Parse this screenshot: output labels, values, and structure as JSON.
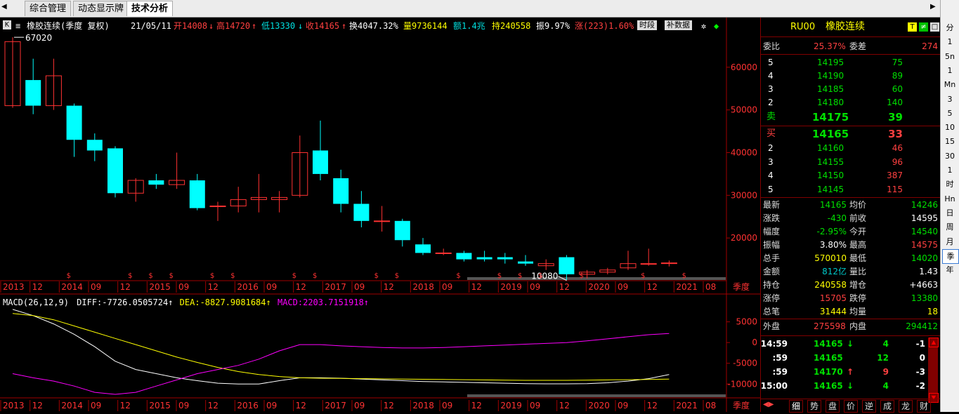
{
  "tabs": [
    {
      "label": "综合管理",
      "active": false
    },
    {
      "label": "动态显示牌",
      "active": false
    },
    {
      "label": "技术分析",
      "active": true
    }
  ],
  "header": {
    "k_button": "K",
    "title": "橡胶连续(季度 复权)",
    "date": "21/05/11",
    "open": "开14008",
    "high": "高14720",
    "low": "低13330",
    "close": "收14165",
    "turnover_rate": "换4047.32%",
    "volume": "量9736144",
    "amount": "额1.4兆",
    "open_interest": "持240558",
    "amplitude": "振9.97%",
    "change": "涨(223)1.60%",
    "time_btn": "时段",
    "fill_btn": "补数据"
  },
  "chart_data": [
    {
      "type": "candlestick",
      "title": "",
      "y_ticks": [
        20000,
        30000,
        40000,
        50000,
        60000
      ],
      "max_label": "67020",
      "min_label": "10080",
      "x_labels": [
        "2013",
        "12",
        "2014",
        "09",
        "12",
        "2015",
        "09",
        "12",
        "2016",
        "09",
        "12",
        "2017",
        "09",
        "12",
        "2018",
        "09",
        "12",
        "2019",
        "09",
        "12",
        "2020",
        "09",
        "12",
        "2021",
        "08"
      ],
      "period_label": "季度",
      "candles": [
        {
          "o": 51000,
          "h": 67020,
          "l": 50500,
          "c": 66000
        },
        {
          "o": 57000,
          "h": 62000,
          "l": 49000,
          "c": 51000
        },
        {
          "o": 51000,
          "h": 62000,
          "l": 50000,
          "c": 58000
        },
        {
          "o": 51000,
          "h": 51500,
          "l": 39000,
          "c": 43000
        },
        {
          "o": 43000,
          "h": 44500,
          "l": 38000,
          "c": 40500
        },
        {
          "o": 41000,
          "h": 41500,
          "l": 29500,
          "c": 30500
        },
        {
          "o": 30500,
          "h": 34000,
          "l": 28500,
          "c": 33500
        },
        {
          "o": 33500,
          "h": 35000,
          "l": 31500,
          "c": 32500
        },
        {
          "o": 32500,
          "h": 40000,
          "l": 31500,
          "c": 33500
        },
        {
          "o": 33500,
          "h": 35000,
          "l": 26500,
          "c": 27000
        },
        {
          "o": 27500,
          "h": 28500,
          "l": 24000,
          "c": 27500
        },
        {
          "o": 27500,
          "h": 32000,
          "l": 26000,
          "c": 29000
        },
        {
          "o": 29000,
          "h": 35000,
          "l": 26000,
          "c": 29500
        },
        {
          "o": 29000,
          "h": 31000,
          "l": 26000,
          "c": 29500
        },
        {
          "o": 30000,
          "h": 44000,
          "l": 29500,
          "c": 40000
        },
        {
          "o": 40500,
          "h": 47500,
          "l": 33500,
          "c": 35000
        },
        {
          "o": 34000,
          "h": 36000,
          "l": 26000,
          "c": 28000
        },
        {
          "o": 28000,
          "h": 31000,
          "l": 22500,
          "c": 24000
        },
        {
          "o": 24000,
          "h": 27500,
          "l": 21500,
          "c": 24000
        },
        {
          "o": 24000,
          "h": 24500,
          "l": 18000,
          "c": 19500
        },
        {
          "o": 18500,
          "h": 20000,
          "l": 16000,
          "c": 16500
        },
        {
          "o": 16500,
          "h": 17500,
          "l": 16000,
          "c": 16500
        },
        {
          "o": 16500,
          "h": 17000,
          "l": 14500,
          "c": 15000
        },
        {
          "o": 15500,
          "h": 17000,
          "l": 14500,
          "c": 15000
        },
        {
          "o": 15500,
          "h": 16500,
          "l": 14000,
          "c": 15000
        },
        {
          "o": 14500,
          "h": 16000,
          "l": 13500,
          "c": 14000
        },
        {
          "o": 13500,
          "h": 15000,
          "l": 12500,
          "c": 14000
        },
        {
          "o": 15500,
          "h": 16000,
          "l": 10080,
          "c": 11500
        },
        {
          "o": 11500,
          "h": 12500,
          "l": 10500,
          "c": 12000
        },
        {
          "o": 12000,
          "h": 13000,
          "l": 11500,
          "c": 12500
        },
        {
          "o": 13000,
          "h": 17000,
          "l": 12500,
          "c": 14000
        },
        {
          "o": 14000,
          "h": 17500,
          "l": 13500,
          "c": 14000
        },
        {
          "o": 14008,
          "h": 14720,
          "l": 13330,
          "c": 14165
        }
      ],
      "up_color": "#ff3232",
      "down_color": "#00ffff",
      "ex_rights_marker": "$"
    },
    {
      "type": "line",
      "title": "MACD(26,12,9)",
      "legend": [
        {
          "label": "DIFF:-7726.0505724",
          "color": "#ffffff"
        },
        {
          "label": "DEA:-8827.9081684",
          "color": "#ffff00"
        },
        {
          "label": "MACD:2203.7151918",
          "color": "#ff00ff"
        }
      ],
      "y_ticks": [
        -10000,
        -5000,
        0,
        5000
      ],
      "series": [
        {
          "name": "DIFF",
          "color": "#ffffff",
          "values": [
            8000,
            6500,
            4500,
            2000,
            -1000,
            -4500,
            -6500,
            -7500,
            -8500,
            -9200,
            -9800,
            -10000,
            -10000,
            -9200,
            -8500,
            -8500,
            -8600,
            -8800,
            -9000,
            -9200,
            -9400,
            -9500,
            -9600,
            -9700,
            -9800,
            -9900,
            -9950,
            -9950,
            -9900,
            -9700,
            -9300,
            -8700,
            -7726
          ]
        },
        {
          "name": "DEA",
          "color": "#ffff00",
          "values": [
            7000,
            6500,
            5500,
            4000,
            2500,
            1000,
            -500,
            -2000,
            -3500,
            -4800,
            -6000,
            -7000,
            -7700,
            -8200,
            -8500,
            -8600,
            -8650,
            -8700,
            -8750,
            -8800,
            -8850,
            -8900,
            -8950,
            -9000,
            -9050,
            -9100,
            -9100,
            -9100,
            -9050,
            -9000,
            -8950,
            -8900,
            -8828
          ]
        },
        {
          "name": "MACD",
          "color": "#ff00ff",
          "values": [
            -7500,
            -8500,
            -9300,
            -10500,
            -12000,
            -12500,
            -12000,
            -10500,
            -9000,
            -7500,
            -6500,
            -5500,
            -4000,
            -2000,
            -500,
            -500,
            -800,
            -1000,
            -1200,
            -1300,
            -1300,
            -1200,
            -1000,
            -800,
            -600,
            -400,
            -200,
            0,
            400,
            900,
            1400,
            1900,
            2204
          ]
        }
      ]
    }
  ],
  "right_panel": {
    "code": "RU00",
    "name": "橡胶连续",
    "weibi_label": "委比",
    "weibi": "25.37%",
    "weicha_label": "委差",
    "weicha": "274",
    "sell_levels": [
      {
        "level": "5",
        "price": "14195",
        "vol": "75"
      },
      {
        "level": "4",
        "price": "14190",
        "vol": "89"
      },
      {
        "level": "3",
        "price": "14185",
        "vol": "60"
      },
      {
        "level": "2",
        "price": "14180",
        "vol": "140"
      }
    ],
    "sell1": {
      "label": "卖",
      "price": "14175",
      "vol": "39"
    },
    "buy1": {
      "label": "买",
      "price": "14165",
      "vol": "33"
    },
    "buy_levels": [
      {
        "level": "2",
        "price": "14160",
        "vol": "46"
      },
      {
        "level": "3",
        "price": "14155",
        "vol": "96"
      },
      {
        "level": "4",
        "price": "14150",
        "vol": "387"
      },
      {
        "level": "5",
        "price": "14145",
        "vol": "115"
      }
    ],
    "stats": [
      {
        "l1": "最新",
        "v1": "14165",
        "c1": "green",
        "l2": "均价",
        "v2": "14246",
        "c2": "green"
      },
      {
        "l1": "涨跌",
        "v1": "-430",
        "c1": "green",
        "l2": "前收",
        "v2": "14595",
        "c2": "white"
      },
      {
        "l1": "幅度",
        "v1": "-2.95%",
        "c1": "green",
        "l2": "今开",
        "v2": "14540",
        "c2": "green"
      },
      {
        "l1": "振幅",
        "v1": "3.80%",
        "c1": "white",
        "l2": "最高",
        "v2": "14575",
        "c2": "red"
      },
      {
        "l1": "总手",
        "v1": "570010",
        "c1": "yellow",
        "l2": "最低",
        "v2": "14020",
        "c2": "green"
      },
      {
        "l1": "金额",
        "v1": "812亿",
        "c1": "cyan",
        "l2": "量比",
        "v2": "1.43",
        "c2": "white"
      },
      {
        "l1": "持仓",
        "v1": "240558",
        "c1": "yellow",
        "l2": "增仓",
        "v2": "+4663",
        "c2": "white"
      },
      {
        "l1": "涨停",
        "v1": "15705",
        "c1": "red",
        "l2": "跌停",
        "v2": "13380",
        "c2": "green"
      },
      {
        "l1": "总笔",
        "v1": "31444",
        "c1": "yellow",
        "l2": "均量",
        "v2": "18",
        "c2": "yellow"
      }
    ],
    "waipan_label": "外盘",
    "waipan": "275598",
    "neipan_label": "内盘",
    "neipan": "294412",
    "ticks": [
      {
        "time": "14:59",
        "price": "14165",
        "arrow": "↓",
        "arrow_color": "green",
        "vol": "4",
        "vol_color": "green",
        "oi": "-1"
      },
      {
        "time": ":59",
        "price": "14165",
        "arrow": "",
        "arrow_color": "white",
        "vol": "12",
        "vol_color": "green",
        "oi": "0"
      },
      {
        "time": ":59",
        "price": "14170",
        "arrow": "↑",
        "arrow_color": "red",
        "vol": "9",
        "vol_color": "red",
        "oi": "-3"
      },
      {
        "time": "15:00",
        "price": "14165",
        "arrow": "↓",
        "arrow_color": "green",
        "vol": "4",
        "vol_color": "green",
        "oi": "-2"
      }
    ],
    "bottom_tabs": [
      "细",
      "势",
      "盘",
      "价",
      "逆",
      "成",
      "龙",
      "财"
    ]
  },
  "period_buttons": [
    "分",
    "1",
    "5n",
    "1",
    "Mn",
    "3",
    "5",
    "10",
    "15",
    "30",
    "1",
    "时",
    "Hn",
    "日",
    "周",
    "月",
    "季",
    "年"
  ]
}
